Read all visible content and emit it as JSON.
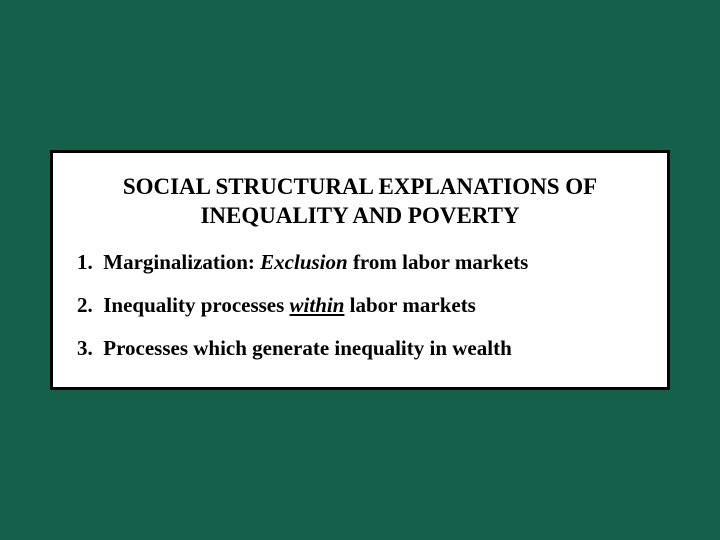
{
  "background_color": "#14604b",
  "box": {
    "background_color": "#ffffff",
    "border_color": "#000000",
    "border_width": 3
  },
  "title": {
    "line1": "SOCIAL STRUCTURAL EXPLANATIONS OF",
    "line2": "INEQUALITY AND POVERTY",
    "fontsize": 23,
    "color": "#000000"
  },
  "items": [
    {
      "number": "1.",
      "prefix": "Marginalization: ",
      "emph": "Exclusion",
      "emph_style": "italic",
      "suffix": " from labor markets"
    },
    {
      "number": "2.",
      "prefix": "Inequality processes ",
      "emph": "within",
      "emph_style": "underline-italic",
      "suffix": " labor markets"
    },
    {
      "number": "3.",
      "prefix": "Processes which generate inequality in wealth",
      "emph": "",
      "emph_style": "",
      "suffix": ""
    }
  ],
  "item_fontsize": 21
}
